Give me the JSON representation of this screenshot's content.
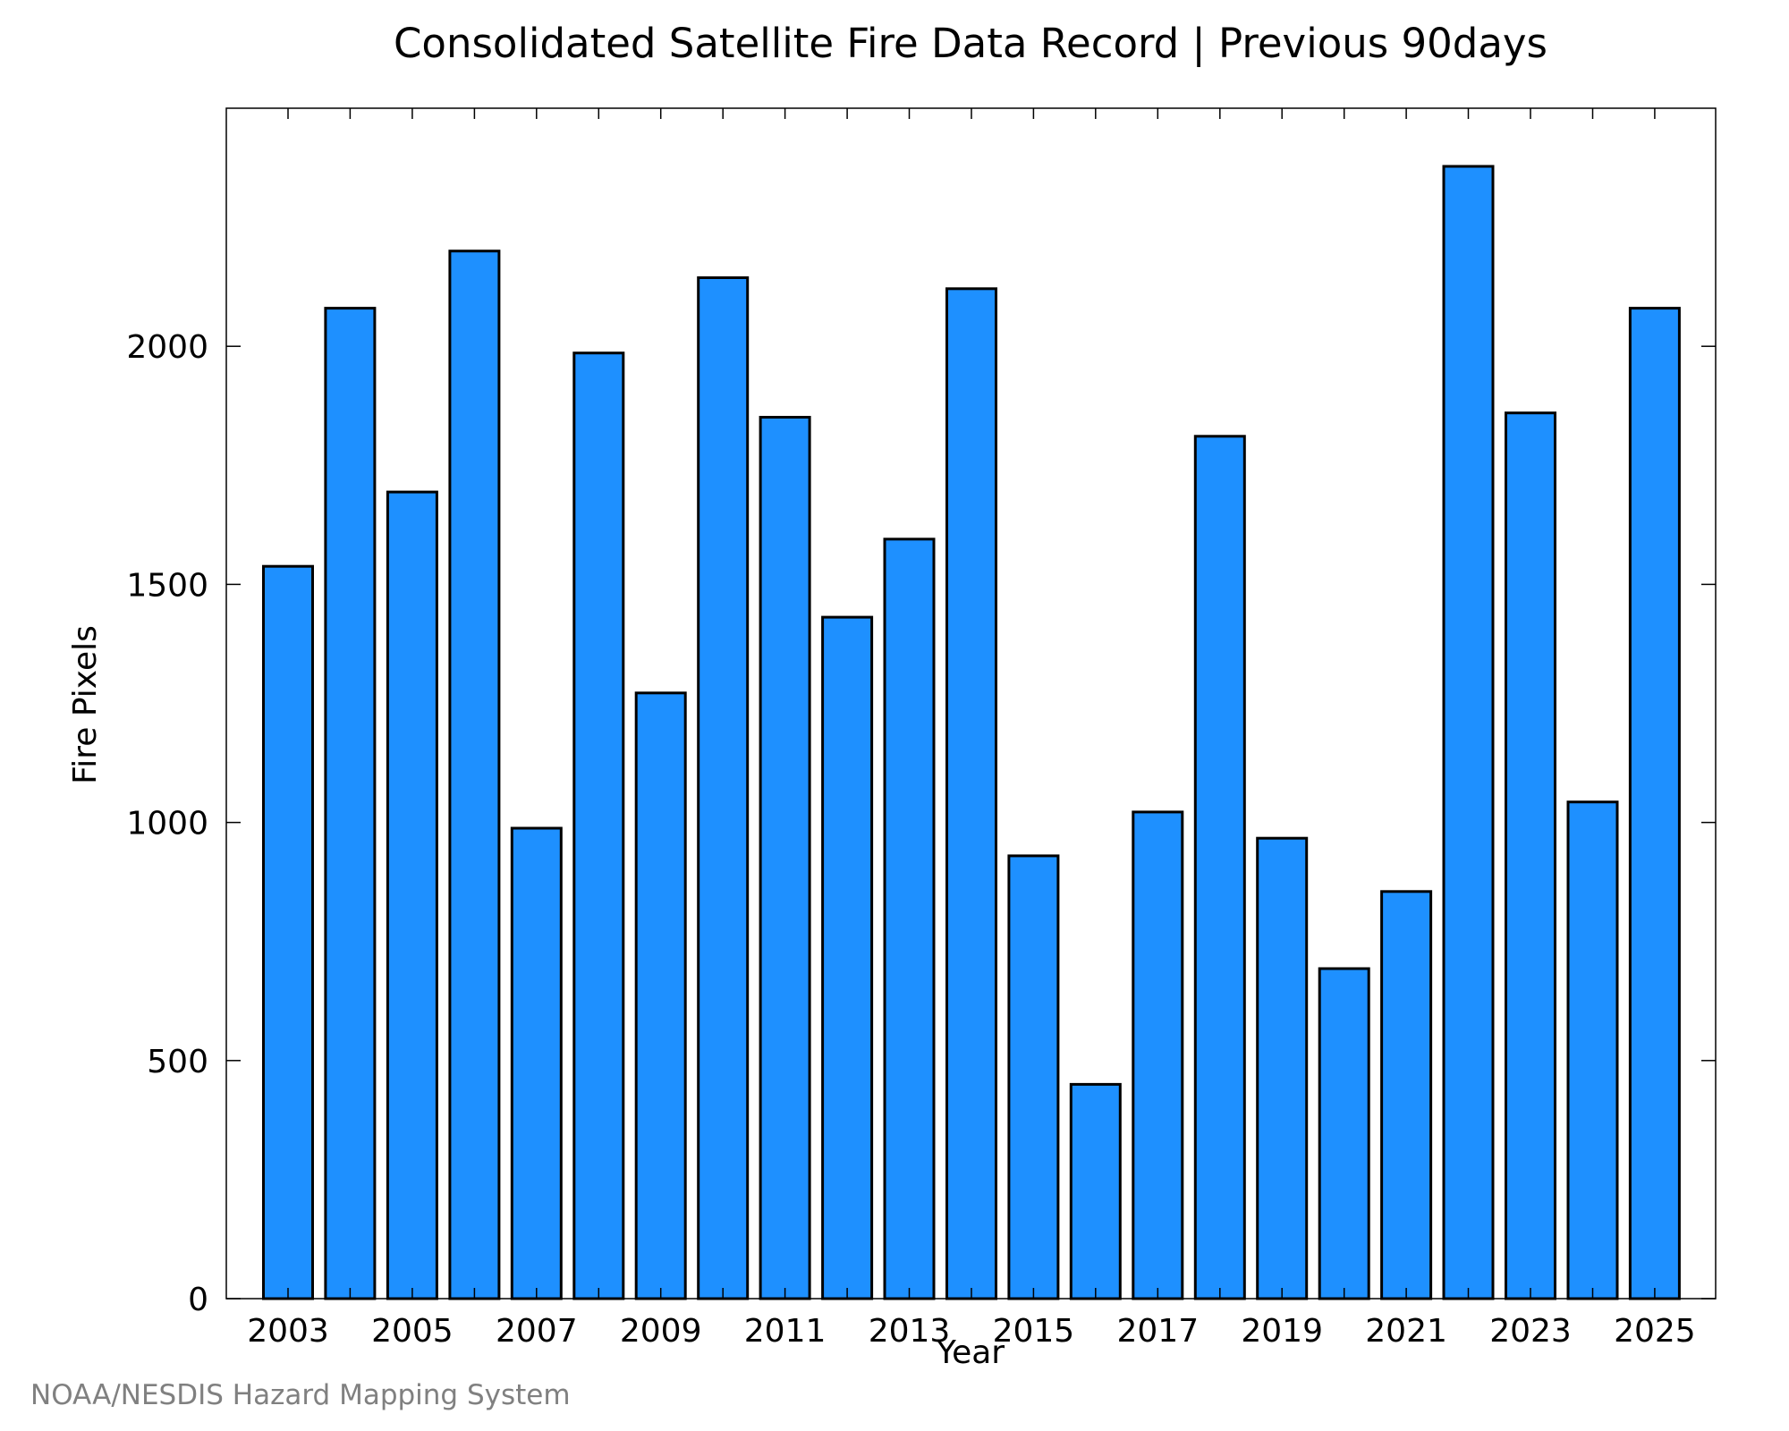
{
  "credit": "NOAA/NESDIS Hazard Mapping System",
  "colors": {
    "bar_fill": "#1e90ff",
    "bar_stroke": "#000000",
    "axis": "#000000",
    "credit": "#808080"
  },
  "chart_data": {
    "type": "bar",
    "title": "Consolidated Satellite Fire Data Record | Previous 90days",
    "xlabel": "Year",
    "ylabel": "Fire Pixels",
    "categories": [
      "2003",
      "2004",
      "2005",
      "2006",
      "2007",
      "2008",
      "2009",
      "2010",
      "2011",
      "2012",
      "2013",
      "2014",
      "2015",
      "2016",
      "2017",
      "2018",
      "2019",
      "2020",
      "2021",
      "2022",
      "2023",
      "2024",
      "2025"
    ],
    "values": [
      1538,
      2080,
      1694,
      2200,
      988,
      1986,
      1272,
      2144,
      1851,
      1431,
      1595,
      2121,
      930,
      450,
      1022,
      1811,
      967,
      693,
      855,
      2378,
      1860,
      1043,
      2080
    ],
    "x_tick_labels": [
      "2003",
      "2005",
      "2007",
      "2009",
      "2011",
      "2013",
      "2015",
      "2017",
      "2019",
      "2021",
      "2023",
      "2025"
    ],
    "y_ticks": [
      0,
      500,
      1000,
      1500,
      2000
    ],
    "ylim": [
      0,
      2500
    ],
    "grid": false,
    "legend": "none"
  }
}
